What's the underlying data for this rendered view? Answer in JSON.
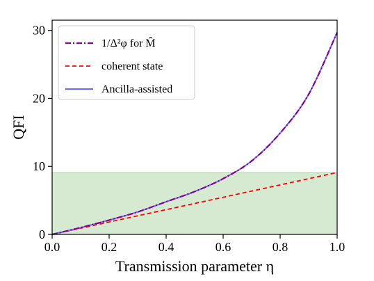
{
  "chart_data": {
    "type": "line",
    "title": "",
    "xlabel": "Transmission parameter η",
    "ylabel": "QFI",
    "xlim": [
      0.0,
      1.0
    ],
    "ylim": [
      0,
      31.5
    ],
    "xticks": [
      "0.0",
      "0.2",
      "0.4",
      "0.6",
      "0.8",
      "1.0"
    ],
    "yticks": [
      "0",
      "10",
      "20",
      "30"
    ],
    "grid": false,
    "legend_position": "top-left",
    "shaded_region": {
      "y_from": 0,
      "y_to": 9.1,
      "color": "#d6e9d1"
    },
    "series": [
      {
        "name": "1/Δ²φ for M̂",
        "style": "dash-dot",
        "color": "#8b008b",
        "x": [
          0.0,
          0.1,
          0.2,
          0.3,
          0.4,
          0.5,
          0.6,
          0.7,
          0.8,
          0.9,
          1.0
        ],
        "y": [
          0.0,
          1.0,
          2.1,
          3.3,
          4.8,
          6.3,
          8.2,
          10.8,
          14.9,
          20.6,
          29.7
        ]
      },
      {
        "name": "coherent state",
        "style": "dashed",
        "color": "#ff0000",
        "x": [
          0.0,
          1.0
        ],
        "y": [
          0.0,
          9.1
        ]
      },
      {
        "name": "Ancilla-assisted",
        "style": "solid",
        "color": "#6a6afa",
        "x": [
          0.0,
          0.1,
          0.2,
          0.3,
          0.4,
          0.5,
          0.6,
          0.7,
          0.8,
          0.9,
          1.0
        ],
        "y": [
          0.0,
          1.0,
          2.1,
          3.3,
          4.8,
          6.3,
          8.2,
          10.8,
          14.9,
          20.6,
          29.7
        ]
      }
    ]
  }
}
